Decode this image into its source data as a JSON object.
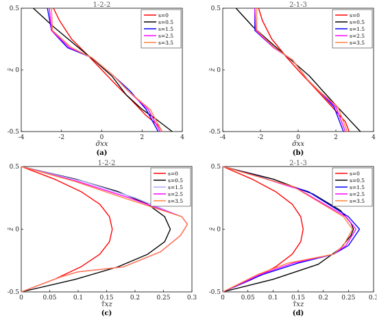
{
  "chart_data": [
    {
      "id": "a",
      "type": "line",
      "title": "1-2-2",
      "panel_label": "(a)",
      "xlabel": "σ̄xx",
      "ylabel": "z̄",
      "xlim": [
        -4,
        4
      ],
      "ylim": [
        -0.5,
        0.5
      ],
      "xticks": [
        -4,
        -2,
        0,
        2,
        4
      ],
      "xtick_labels": [
        "-4",
        "-2",
        "0",
        "2",
        "4"
      ],
      "yticks": [
        -0.5,
        0,
        0.5
      ],
      "ytick_labels": [
        "-0.5",
        "0",
        "0.5"
      ],
      "legend_position": "top-right",
      "series": [
        {
          "name": "s=0",
          "color": "#ff0000",
          "x": [
            -2.4,
            -2.1,
            -1.5,
            -0.7,
            0.0,
            0.7,
            1.5,
            2.2,
            2.8,
            3.0
          ],
          "y": [
            0.5,
            0.4,
            0.25,
            0.12,
            0.0,
            -0.12,
            -0.25,
            -0.37,
            -0.45,
            -0.5
          ]
        },
        {
          "name": "s=0.5",
          "color": "#000000",
          "x": [
            -3.4,
            -2.4,
            -1.3,
            -0.4,
            0.5,
            1.2,
            2.0,
            2.7,
            3.5
          ],
          "y": [
            0.5,
            0.35,
            0.2,
            0.08,
            -0.05,
            -0.2,
            -0.32,
            -0.4,
            -0.5
          ]
        },
        {
          "name": "s=1.5",
          "color": "#0000ff",
          "x": [
            -2.7,
            -2.5,
            -1.7,
            -0.5,
            0.6,
            1.4,
            2.2,
            2.8
          ],
          "y": [
            0.5,
            0.32,
            0.18,
            0.1,
            -0.05,
            -0.17,
            -0.32,
            -0.5
          ]
        },
        {
          "name": "s=2.5",
          "color": "#ff00ff",
          "x": [
            -2.6,
            -2.5,
            -1.6,
            -0.5,
            0.6,
            1.3,
            2.3,
            2.9
          ],
          "y": [
            0.5,
            0.32,
            0.18,
            0.1,
            -0.05,
            -0.17,
            -0.32,
            -0.5
          ]
        },
        {
          "name": "s=3.5",
          "color": "#ff8040",
          "x": [
            -2.5,
            -2.45,
            -1.5,
            -0.5,
            0.6,
            1.3,
            2.4,
            3.0
          ],
          "y": [
            0.5,
            0.32,
            0.18,
            0.1,
            -0.05,
            -0.17,
            -0.32,
            -0.5
          ]
        }
      ]
    },
    {
      "id": "b",
      "type": "line",
      "title": "2-1-3",
      "panel_label": "(b)",
      "xlabel": "σ̄xx",
      "ylabel": "z̄",
      "xlim": [
        -4,
        4
      ],
      "ylim": [
        -0.5,
        0.5
      ],
      "xticks": [
        -4,
        -2,
        0,
        2,
        4
      ],
      "xtick_labels": [
        "-4",
        "-2",
        "0",
        "2",
        "4"
      ],
      "yticks": [
        -0.5,
        0,
        0.5
      ],
      "ytick_labels": [
        "-0.5",
        "0",
        "0.5"
      ],
      "legend_position": "top-right",
      "series": [
        {
          "name": "s=0",
          "color": "#ff0000",
          "x": [
            -2.1,
            -1.9,
            -1.4,
            -0.6,
            0.1,
            0.9,
            1.8,
            2.5,
            2.7
          ],
          "y": [
            0.5,
            0.4,
            0.25,
            0.1,
            -0.02,
            -0.15,
            -0.3,
            -0.42,
            -0.5
          ]
        },
        {
          "name": "s=0.5",
          "color": "#000000",
          "x": [
            -3.3,
            -2.4,
            -1.3,
            -0.3,
            0.6,
            1.3,
            2.2,
            3.3
          ],
          "y": [
            0.5,
            0.35,
            0.2,
            0.07,
            -0.05,
            -0.17,
            -0.32,
            -0.5
          ]
        },
        {
          "name": "s=1.5",
          "color": "#0000ff",
          "x": [
            -2.3,
            -2.3,
            -1.3,
            -0.3,
            0.5,
            1.1,
            1.9,
            2.4
          ],
          "y": [
            0.5,
            0.32,
            0.18,
            0.08,
            -0.08,
            -0.17,
            -0.3,
            -0.5
          ]
        },
        {
          "name": "s=2.5",
          "color": "#ff00ff",
          "x": [
            -2.3,
            -2.25,
            -1.3,
            -0.3,
            0.5,
            1.1,
            2.0,
            2.5
          ],
          "y": [
            0.5,
            0.32,
            0.18,
            0.08,
            -0.08,
            -0.17,
            -0.3,
            -0.5
          ]
        },
        {
          "name": "s=3.5",
          "color": "#ff8040",
          "x": [
            -2.2,
            -2.2,
            -1.25,
            -0.3,
            0.5,
            1.1,
            2.1,
            2.6
          ],
          "y": [
            0.5,
            0.32,
            0.18,
            0.08,
            -0.08,
            -0.17,
            -0.3,
            -0.5
          ]
        }
      ]
    },
    {
      "id": "c",
      "type": "line",
      "title": "1-2-2",
      "panel_label": "(c)",
      "xlabel": "τ̄xz",
      "ylabel": "z̄",
      "xlim": [
        0,
        0.3
      ],
      "ylim": [
        -0.5,
        0.5
      ],
      "xticks": [
        0,
        0.05,
        0.1,
        0.15,
        0.2,
        0.25,
        0.3
      ],
      "xtick_labels": [
        "0",
        "0.05",
        "0.1",
        "0.15",
        "0.2",
        "0.25",
        "0.3"
      ],
      "yticks": [
        -0.5,
        0,
        0.5
      ],
      "ytick_labels": [
        "-0.5",
        "0",
        "0.5"
      ],
      "legend_position": "top-right",
      "series": [
        {
          "name": "s=0",
          "color": "#ff0000",
          "x": [
            0,
            0.058,
            0.105,
            0.138,
            0.155,
            0.16,
            0.155,
            0.138,
            0.105,
            0.058,
            0
          ],
          "y": [
            0.5,
            0.4,
            0.3,
            0.2,
            0.1,
            0,
            -0.1,
            -0.2,
            -0.3,
            -0.4,
            -0.5
          ]
        },
        {
          "name": "s=0.5",
          "color": "#000000",
          "x": [
            0,
            0.095,
            0.17,
            0.222,
            0.252,
            0.262,
            0.252,
            0.222,
            0.17,
            0.095,
            0
          ],
          "y": [
            0.5,
            0.4,
            0.3,
            0.2,
            0.1,
            0,
            -0.1,
            -0.2,
            -0.3,
            -0.4,
            -0.5
          ]
        },
        {
          "name": "s=1.5",
          "color": "#aaaaff",
          "x": [
            0,
            0.11,
            0.2,
            0.282,
            0.292,
            0.28,
            0.245,
            0.18,
            0.1,
            0.07,
            0
          ],
          "y": [
            0.5,
            0.38,
            0.25,
            0.1,
            0.04,
            -0.05,
            -0.18,
            -0.3,
            -0.34,
            -0.38,
            -0.5
          ]
        },
        {
          "name": "s=2.5",
          "color": "#ff00ff",
          "x": [
            0,
            0.1,
            0.19,
            0.282,
            0.292,
            0.28,
            0.245,
            0.18,
            0.1,
            0.07,
            0
          ],
          "y": [
            0.5,
            0.38,
            0.25,
            0.1,
            0.04,
            -0.05,
            -0.18,
            -0.3,
            -0.34,
            -0.38,
            -0.5
          ]
        },
        {
          "name": "s=3.5",
          "color": "#ff8040",
          "x": [
            0,
            0.095,
            0.18,
            0.282,
            0.292,
            0.28,
            0.245,
            0.18,
            0.1,
            0.07,
            0
          ],
          "y": [
            0.5,
            0.38,
            0.25,
            0.1,
            0.04,
            -0.05,
            -0.18,
            -0.3,
            -0.34,
            -0.38,
            -0.5
          ]
        }
      ]
    },
    {
      "id": "d",
      "type": "line",
      "title": "2-1-3",
      "panel_label": "(d)",
      "xlabel": "τ̄xz",
      "ylabel": "z̄",
      "xlim": [
        0,
        0.3
      ],
      "ylim": [
        -0.5,
        0.5
      ],
      "xticks": [
        0,
        0.05,
        0.1,
        0.15,
        0.2,
        0.25,
        0.3
      ],
      "xtick_labels": [
        "0",
        "0.05",
        "0.1",
        "0.15",
        "0.2",
        "0.25",
        "0.3"
      ],
      "yticks": [
        -0.5,
        0,
        0.5
      ],
      "ytick_labels": [
        "-0.5",
        "0",
        "0.5"
      ],
      "legend_position": "top-right",
      "series": [
        {
          "name": "s=0",
          "color": "#ff0000",
          "x": [
            0,
            0.058,
            0.105,
            0.138,
            0.155,
            0.16,
            0.155,
            0.138,
            0.105,
            0.058,
            0
          ],
          "y": [
            0.5,
            0.4,
            0.3,
            0.2,
            0.1,
            0,
            -0.1,
            -0.2,
            -0.3,
            -0.4,
            -0.5
          ]
        },
        {
          "name": "s=0.5",
          "color": "#000000",
          "x": [
            0,
            0.1,
            0.18,
            0.234,
            0.255,
            0.26,
            0.255,
            0.235,
            0.19,
            0.1,
            0
          ],
          "y": [
            0.5,
            0.4,
            0.28,
            0.15,
            0.05,
            0,
            -0.05,
            -0.15,
            -0.28,
            -0.4,
            -0.5
          ]
        },
        {
          "name": "s=1.5",
          "color": "#0000ff",
          "x": [
            0,
            0.08,
            0.17,
            0.25,
            0.272,
            0.25,
            0.22,
            0.15,
            0.08,
            0
          ],
          "y": [
            0.5,
            0.41,
            0.3,
            0.1,
            0.0,
            -0.13,
            -0.2,
            -0.27,
            -0.36,
            -0.5
          ]
        },
        {
          "name": "s=2.5",
          "color": "#ff00ff",
          "x": [
            0,
            0.07,
            0.15,
            0.245,
            0.265,
            0.245,
            0.22,
            0.14,
            0.075,
            0
          ],
          "y": [
            0.5,
            0.42,
            0.32,
            0.1,
            0.0,
            -0.13,
            -0.2,
            -0.27,
            -0.36,
            -0.5
          ]
        },
        {
          "name": "s=3.5",
          "color": "#ff8040",
          "x": [
            0,
            0.06,
            0.14,
            0.24,
            0.258,
            0.24,
            0.22,
            0.13,
            0.07,
            0
          ],
          "y": [
            0.5,
            0.43,
            0.34,
            0.1,
            0.0,
            -0.13,
            -0.2,
            -0.27,
            -0.36,
            -0.5
          ]
        }
      ]
    }
  ]
}
